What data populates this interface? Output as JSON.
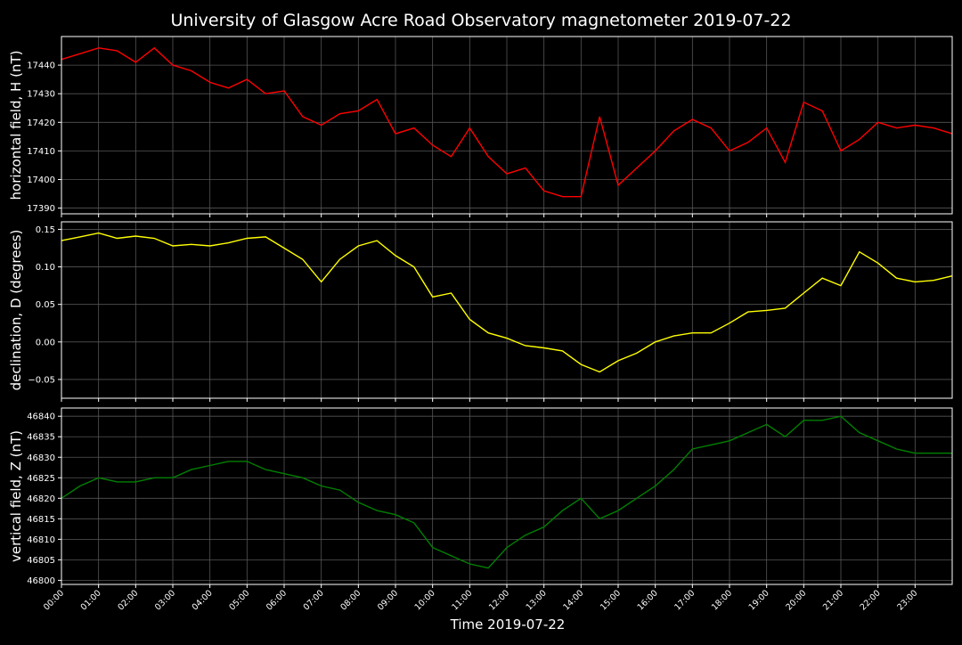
{
  "title": "University of Glasgow Acre Road Observatory magnetometer 2019-07-22",
  "xlabel": "Time 2019-07-22",
  "x_ticks": [
    "00:00",
    "01:00",
    "02:00",
    "03:00",
    "04:00",
    "05:00",
    "06:00",
    "07:00",
    "08:00",
    "09:00",
    "10:00",
    "11:00",
    "12:00",
    "13:00",
    "14:00",
    "15:00",
    "16:00",
    "17:00",
    "18:00",
    "19:00",
    "20:00",
    "21:00",
    "22:00",
    "23:00"
  ],
  "colors": {
    "background": "#000000",
    "grid": "#555555",
    "axes": "#ffffff",
    "H": "#ff0000",
    "D": "#ffff00",
    "Z": "#008000"
  },
  "chart_data": [
    {
      "type": "line",
      "name": "H",
      "ylabel": "horizontal field, H (nT)",
      "ylim": [
        17388,
        17450
      ],
      "yticks": [
        17390,
        17400,
        17410,
        17420,
        17430,
        17440
      ],
      "xlim": [
        0,
        24
      ],
      "grid": true,
      "x": [
        0,
        0.5,
        1,
        1.5,
        2,
        2.5,
        3,
        3.5,
        4,
        4.5,
        5,
        5.5,
        6,
        6.5,
        7,
        7.5,
        8,
        8.5,
        9,
        9.5,
        10,
        10.5,
        11,
        11.5,
        12,
        12.5,
        13,
        13.5,
        14,
        14.5,
        15,
        15.5,
        16,
        16.5,
        17,
        17.5,
        18,
        18.5,
        19,
        19.5,
        20,
        20.5,
        21,
        21.5,
        22,
        22.5,
        23,
        23.5,
        24
      ],
      "values": [
        17442,
        17444,
        17446,
        17445,
        17441,
        17446,
        17440,
        17438,
        17434,
        17432,
        17435,
        17430,
        17431,
        17422,
        17419,
        17423,
        17424,
        17428,
        17416,
        17418,
        17412,
        17408,
        17418,
        17408,
        17402,
        17404,
        17396,
        17394,
        17394,
        17422,
        17398,
        17404,
        17410,
        17417,
        17421,
        17418,
        17410,
        17413,
        17418,
        17406,
        17427,
        17424,
        17410,
        17414,
        17420,
        17418,
        17419,
        17418,
        17416
      ]
    },
    {
      "type": "line",
      "name": "D",
      "ylabel": "declination, D (degrees)",
      "ylim": [
        -0.075,
        0.16
      ],
      "yticks": [
        -0.05,
        0.0,
        0.05,
        0.1,
        0.15
      ],
      "ytick_labels": [
        "−0.05",
        "0.00",
        "0.05",
        "0.10",
        "0.15"
      ],
      "xlim": [
        0,
        24
      ],
      "grid": true,
      "x": [
        0,
        0.5,
        1,
        1.5,
        2,
        2.5,
        3,
        3.5,
        4,
        4.5,
        5,
        5.5,
        6,
        6.5,
        7,
        7.5,
        8,
        8.5,
        9,
        9.5,
        10,
        10.5,
        11,
        11.5,
        12,
        12.5,
        13,
        13.5,
        14,
        14.5,
        15,
        15.5,
        16,
        16.5,
        17,
        17.5,
        18,
        18.5,
        19,
        19.5,
        20,
        20.5,
        21,
        21.5,
        22,
        22.5,
        23,
        23.5,
        24
      ],
      "values": [
        0.135,
        0.14,
        0.145,
        0.138,
        0.141,
        0.138,
        0.128,
        0.13,
        0.128,
        0.132,
        0.138,
        0.14,
        0.125,
        0.11,
        0.08,
        0.11,
        0.128,
        0.135,
        0.115,
        0.1,
        0.06,
        0.065,
        0.03,
        0.012,
        0.005,
        -0.005,
        -0.008,
        -0.012,
        -0.03,
        -0.04,
        -0.025,
        -0.015,
        0.0,
        0.008,
        0.012,
        0.012,
        0.025,
        0.04,
        0.042,
        0.045,
        0.065,
        0.085,
        0.075,
        0.12,
        0.105,
        0.085,
        0.08,
        0.082,
        0.088
      ]
    },
    {
      "type": "line",
      "name": "Z",
      "ylabel": "vertical field, Z (nT)",
      "ylim": [
        46799,
        46842
      ],
      "yticks": [
        46800,
        46805,
        46810,
        46815,
        46820,
        46825,
        46830,
        46835,
        46840
      ],
      "xlim": [
        0,
        24
      ],
      "grid": true,
      "x": [
        0,
        0.5,
        1,
        1.5,
        2,
        2.5,
        3,
        3.5,
        4,
        4.5,
        5,
        5.5,
        6,
        6.5,
        7,
        7.5,
        8,
        8.5,
        9,
        9.5,
        10,
        10.5,
        11,
        11.5,
        12,
        12.5,
        13,
        13.5,
        14,
        14.5,
        15,
        15.5,
        16,
        16.5,
        17,
        17.5,
        18,
        18.5,
        19,
        19.5,
        20,
        20.5,
        21,
        21.5,
        22,
        22.5,
        23,
        23.5,
        24
      ],
      "values": [
        46820,
        46823,
        46825,
        46824,
        46824,
        46825,
        46825,
        46827,
        46828,
        46829,
        46829,
        46827,
        46826,
        46825,
        46823,
        46822,
        46819,
        46817,
        46816,
        46814,
        46808,
        46806,
        46804,
        46803,
        46808,
        46811,
        46813,
        46817,
        46820,
        46815,
        46817,
        46820,
        46823,
        46827,
        46832,
        46833,
        46834,
        46836,
        46838,
        46835,
        46839,
        46839,
        46840,
        46836,
        46834,
        46832,
        46831,
        46831,
        46831
      ]
    }
  ]
}
